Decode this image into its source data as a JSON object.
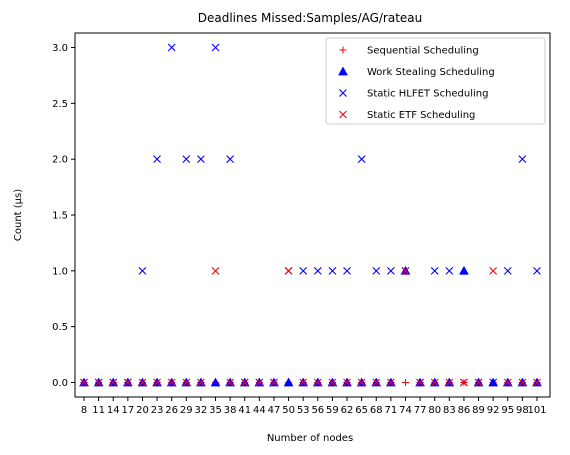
{
  "chart_data": {
    "type": "scatter",
    "title": "Deadlines Missed:Samples/AG/rateau",
    "xlabel": "Number of nodes",
    "ylabel": "Count (µs)",
    "ylim": [
      -0.13,
      3.13
    ],
    "yticks": [
      0.0,
      0.5,
      1.0,
      1.5,
      2.0,
      2.5,
      3.0
    ],
    "ytick_labels": [
      "0.0",
      "0.5",
      "1.0",
      "1.5",
      "2.0",
      "2.5",
      "3.0"
    ],
    "categories": [
      "8",
      "11",
      "14",
      "17",
      "20",
      "23",
      "26",
      "29",
      "32",
      "35",
      "38",
      "41",
      "44",
      "47",
      "50",
      "53",
      "56",
      "59",
      "62",
      "65",
      "68",
      "71",
      "74",
      "77",
      "80",
      "83",
      "86",
      "89",
      "92",
      "95",
      "98",
      "101"
    ],
    "legend_position": "top-right",
    "series": [
      {
        "name": "Sequential Scheduling",
        "marker": "plus",
        "color": "#ff0000",
        "values": [
          0,
          0,
          0,
          0,
          0,
          0,
          0,
          0,
          0,
          0,
          0,
          0,
          0,
          0,
          0,
          0,
          0,
          0,
          0,
          0,
          0,
          0,
          0,
          0,
          0,
          0,
          0,
          0,
          0,
          0,
          0,
          0
        ]
      },
      {
        "name": "Work Stealing Scheduling",
        "marker": "triangle",
        "color": "#0000ff",
        "values": [
          0,
          0,
          0,
          0,
          0,
          0,
          0,
          0,
          0,
          0,
          0,
          0,
          0,
          0,
          0,
          0,
          0,
          0,
          0,
          0,
          0,
          0,
          1,
          0,
          0,
          0,
          1,
          0,
          0,
          0,
          0,
          0
        ]
      },
      {
        "name": "Static HLFET Scheduling",
        "marker": "x",
        "color": "#0000ff",
        "values": [
          0,
          0,
          0,
          0,
          1,
          2,
          3,
          2,
          2,
          3,
          2,
          0,
          0,
          0,
          1,
          1,
          1,
          1,
          1,
          2,
          1,
          1,
          1,
          0,
          1,
          1,
          0,
          0,
          0,
          1,
          2,
          1
        ]
      },
      {
        "name": "Static ETF Scheduling",
        "marker": "x",
        "color": "#ff0000",
        "values": [
          0,
          0,
          0,
          0,
          0,
          0,
          0,
          0,
          0,
          1,
          0,
          0,
          0,
          0,
          1,
          0,
          0,
          0,
          0,
          0,
          0,
          0,
          1,
          0,
          0,
          0,
          0,
          0,
          1,
          0,
          0,
          0
        ]
      }
    ]
  }
}
